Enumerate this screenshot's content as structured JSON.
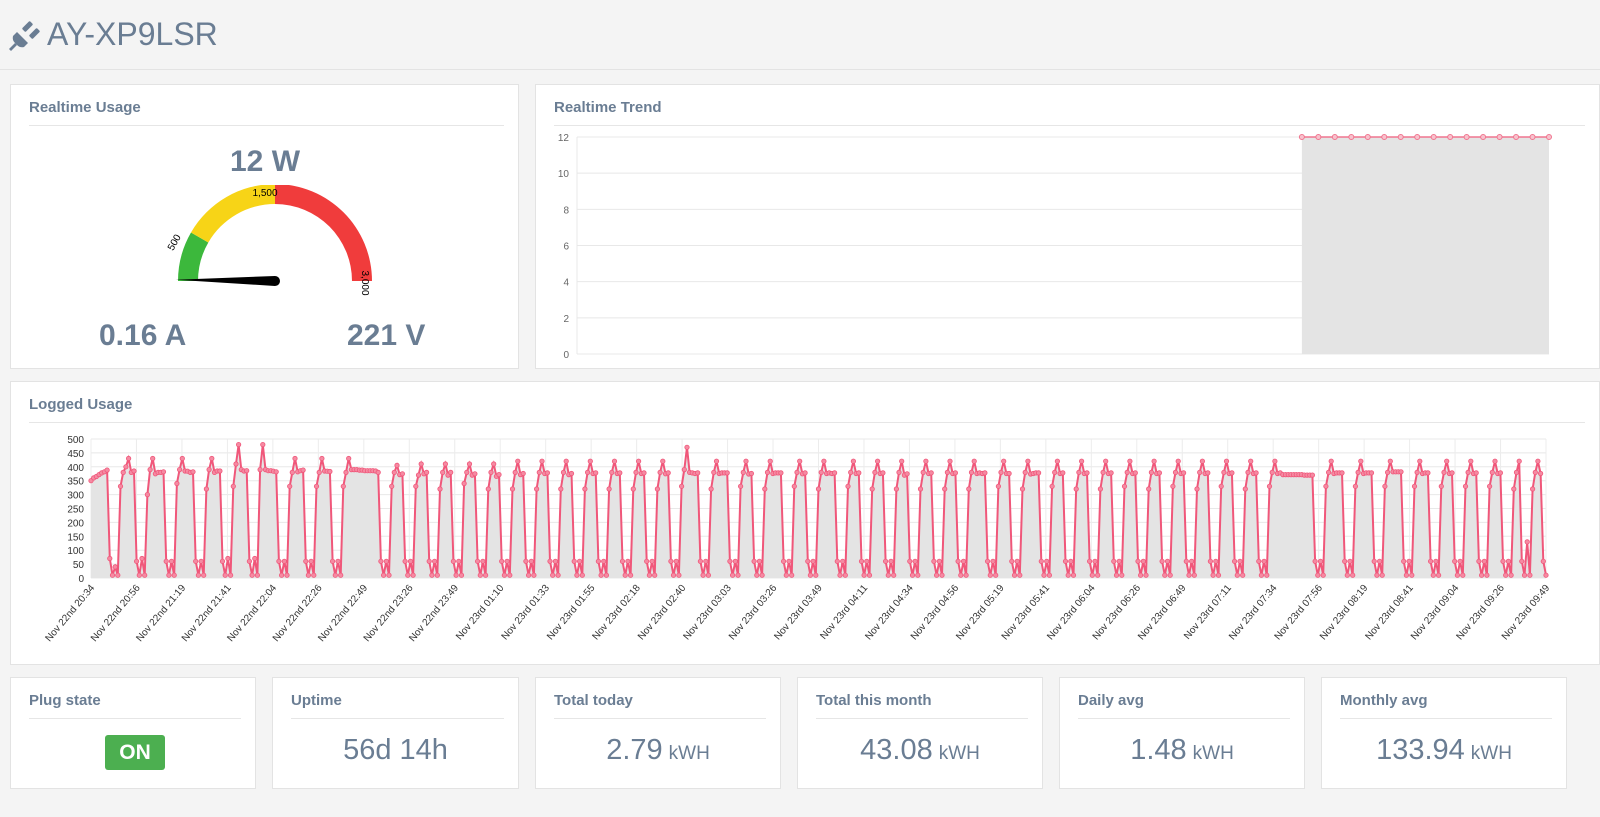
{
  "header": {
    "title": "AY-XP9LSR"
  },
  "realtime_usage": {
    "title": "Realtime Usage",
    "power": "12 W",
    "current": "0.16 A",
    "voltage": "221 V",
    "gauge": {
      "min": 0,
      "max": 3000,
      "value": 12,
      "bands": [
        {
          "from": 0,
          "to": 500,
          "color": "#3cb83c"
        },
        {
          "from": 500,
          "to": 1500,
          "color": "#f7d417"
        },
        {
          "from": 1500,
          "to": 3000,
          "color": "#f03c3c"
        }
      ],
      "labels": [
        "500",
        "1,500",
        "3,000"
      ]
    }
  },
  "realtime_trend": {
    "title": "Realtime Trend",
    "chart_data": {
      "type": "area",
      "y_ticks": [
        "0",
        "2",
        "4",
        "6",
        "8",
        "10",
        "12"
      ],
      "ylim": [
        0,
        12
      ],
      "x_count": 60,
      "x_start_index": 44,
      "values": [
        12,
        12,
        12,
        12,
        12,
        12,
        12,
        12,
        12,
        12,
        12,
        12,
        12,
        12,
        12,
        12
      ],
      "line_color": "#f0758f",
      "fill_color": "#e4e4e4"
    }
  },
  "logged_usage": {
    "title": "Logged Usage",
    "chart_data": {
      "type": "area",
      "ylim": [
        0,
        500
      ],
      "y_ticks": [
        "0",
        "50",
        "100",
        "150",
        "200",
        "250",
        "300",
        "350",
        "400",
        "450",
        "500"
      ],
      "x_labels": [
        "Nov 22nd 20:34",
        "Nov 22nd 20:56",
        "Nov 22nd 21:19",
        "Nov 22nd 21:41",
        "Nov 22nd 22:04",
        "Nov 22nd 22:26",
        "Nov 22nd 22:49",
        "Nov 22nd 23:26",
        "Nov 22nd 23:49",
        "Nov 23rd 01:10",
        "Nov 23rd 01:33",
        "Nov 23rd 01:55",
        "Nov 23rd 02:18",
        "Nov 23rd 02:40",
        "Nov 23rd 03:03",
        "Nov 23rd 03:26",
        "Nov 23rd 03:49",
        "Nov 23rd 04:11",
        "Nov 23rd 04:34",
        "Nov 23rd 04:56",
        "Nov 23rd 05:19",
        "Nov 23rd 05:41",
        "Nov 23rd 06:04",
        "Nov 23rd 06:26",
        "Nov 23rd 06:49",
        "Nov 23rd 07:11",
        "Nov 23rd 07:34",
        "Nov 23rd 07:56",
        "Nov 23rd 08:19",
        "Nov 23rd 08:41",
        "Nov 23rd 09:04",
        "Nov 23rd 09:26",
        "Nov 23rd 09:49"
      ],
      "values": [
        350,
        360,
        365,
        372,
        378,
        382,
        388,
        70,
        10,
        40,
        10,
        330,
        380,
        400,
        430,
        380,
        385,
        60,
        10,
        70,
        10,
        300,
        390,
        430,
        375,
        380,
        380,
        382,
        60,
        10,
        60,
        10,
        340,
        390,
        430,
        385,
        384,
        380,
        382,
        60,
        10,
        60,
        10,
        320,
        390,
        430,
        380,
        385,
        385,
        60,
        10,
        70,
        10,
        330,
        410,
        480,
        390,
        385,
        386,
        60,
        10,
        70,
        10,
        390,
        480,
        390,
        386,
        386,
        384,
        382,
        60,
        10,
        60,
        10,
        330,
        380,
        430,
        382,
        386,
        388,
        60,
        10,
        60,
        10,
        330,
        380,
        430,
        385,
        384,
        383,
        60,
        10,
        60,
        10,
        330,
        380,
        430,
        390,
        390,
        390,
        388,
        388,
        386,
        386,
        386,
        386,
        385,
        380,
        60,
        10,
        60,
        10,
        330,
        380,
        405,
        372,
        375,
        60,
        10,
        60,
        10,
        330,
        370,
        410,
        375,
        380,
        60,
        10,
        60,
        10,
        320,
        380,
        410,
        370,
        380,
        60,
        10,
        60,
        10,
        340,
        380,
        410,
        370,
        375,
        60,
        10,
        60,
        10,
        320,
        380,
        410,
        366,
        372,
        60,
        10,
        60,
        10,
        320,
        380,
        420,
        372,
        376,
        60,
        10,
        60,
        10,
        320,
        380,
        420,
        376,
        378,
        60,
        10,
        60,
        10,
        320,
        380,
        420,
        372,
        376,
        60,
        10,
        60,
        10,
        320,
        380,
        420,
        376,
        378,
        60,
        10,
        60,
        10,
        320,
        380,
        420,
        376,
        378,
        60,
        10,
        60,
        10,
        320,
        380,
        420,
        376,
        378,
        60,
        10,
        60,
        10,
        320,
        380,
        420,
        375,
        378,
        60,
        10,
        60,
        10,
        330,
        390,
        470,
        380,
        378,
        376,
        378,
        60,
        10,
        60,
        10,
        320,
        380,
        420,
        376,
        378,
        378,
        378,
        60,
        10,
        60,
        10,
        330,
        380,
        420,
        374,
        376,
        60,
        10,
        60,
        10,
        320,
        380,
        420,
        376,
        378,
        378,
        378,
        60,
        10,
        60,
        10,
        330,
        380,
        420,
        375,
        378,
        60,
        10,
        60,
        10,
        320,
        380,
        420,
        376,
        378,
        376,
        378,
        60,
        10,
        60,
        10,
        330,
        380,
        420,
        376,
        378,
        60,
        10,
        60,
        10,
        320,
        380,
        420,
        376,
        378,
        60,
        10,
        60,
        10,
        320,
        380,
        420,
        370,
        375,
        60,
        10,
        60,
        10,
        320,
        380,
        420,
        376,
        378,
        60,
        10,
        60,
        10,
        320,
        380,
        420,
        376,
        378,
        60,
        10,
        60,
        10,
        320,
        380,
        420,
        376,
        378,
        376,
        378,
        60,
        10,
        60,
        10,
        330,
        380,
        420,
        376,
        376,
        60,
        10,
        60,
        10,
        320,
        380,
        420,
        374,
        376,
        378,
        378,
        60,
        10,
        60,
        10,
        330,
        380,
        420,
        376,
        378,
        60,
        10,
        60,
        10,
        320,
        380,
        420,
        376,
        378,
        60,
        10,
        60,
        10,
        320,
        380,
        420,
        376,
        378,
        60,
        10,
        60,
        10,
        330,
        380,
        420,
        376,
        378,
        60,
        10,
        60,
        10,
        320,
        380,
        420,
        376,
        378,
        60,
        10,
        60,
        10,
        330,
        380,
        420,
        376,
        378,
        60,
        10,
        60,
        10,
        320,
        380,
        420,
        376,
        378,
        60,
        10,
        60,
        10,
        330,
        380,
        420,
        376,
        378,
        60,
        10,
        60,
        10,
        320,
        380,
        420,
        376,
        378,
        60,
        10,
        60,
        10,
        330,
        380,
        420,
        376,
        378,
        372,
        372,
        372,
        372,
        372,
        372,
        372,
        372,
        370,
        370,
        370,
        370,
        60,
        10,
        60,
        10,
        330,
        380,
        420,
        376,
        378,
        378,
        378,
        60,
        10,
        60,
        10,
        330,
        380,
        420,
        376,
        378,
        378,
        378,
        60,
        10,
        60,
        10,
        330,
        380,
        420,
        382,
        382,
        382,
        382,
        60,
        10,
        60,
        10,
        330,
        380,
        420,
        376,
        378,
        378,
        60,
        10,
        60,
        10,
        330,
        380,
        420,
        376,
        378,
        60,
        10,
        60,
        10,
        330,
        380,
        420,
        376,
        378,
        60,
        10,
        60,
        10,
        330,
        380,
        420,
        376,
        378,
        60,
        10,
        60,
        10,
        320,
        380,
        420,
        60,
        10,
        130,
        10,
        320,
        380,
        420,
        376,
        60,
        10
      ],
      "line_color": "#f0577a",
      "fill_color": "#e4e4e4"
    }
  },
  "stats": {
    "plug_state": {
      "label": "Plug state",
      "value": "ON"
    },
    "uptime": {
      "label": "Uptime",
      "value": "56d 14h"
    },
    "total_today": {
      "label": "Total today",
      "value": "2.79",
      "unit": "kWH"
    },
    "total_month": {
      "label": "Total this month",
      "value": "43.08",
      "unit": "kWH"
    },
    "daily_avg": {
      "label": "Daily avg",
      "value": "1.48",
      "unit": "kWH"
    },
    "monthly_avg": {
      "label": "Monthly avg",
      "value": "133.94",
      "unit": "kWH"
    }
  }
}
